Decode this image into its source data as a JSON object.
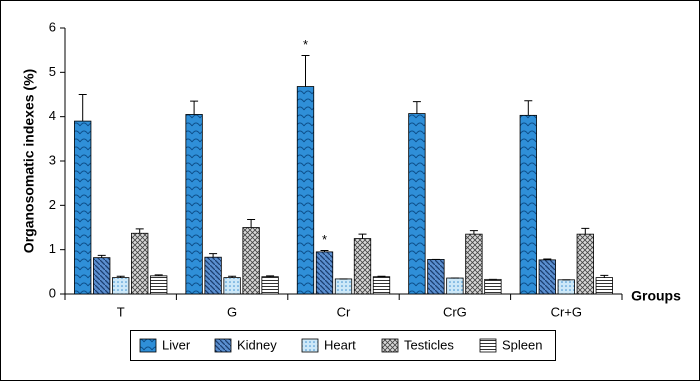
{
  "chart_data": {
    "type": "bar",
    "ylabel": "Organosomatic indexes (%)",
    "xlabel": "Groups",
    "categories": [
      "T",
      "G",
      "Cr",
      "CrG",
      "Cr+G"
    ],
    "series": [
      {
        "name": "Liver",
        "color": "#2f8fd8",
        "values": [
          3.9,
          4.05,
          4.68,
          4.07,
          4.03
        ],
        "errors": [
          0.6,
          0.3,
          0.7,
          0.27,
          0.33
        ]
      },
      {
        "name": "Kidney",
        "color": "#3a6fb0",
        "values": [
          0.82,
          0.83,
          0.95,
          0.78,
          0.77
        ],
        "errors": [
          0.05,
          0.08,
          0.03,
          0,
          0.02
        ]
      },
      {
        "name": "Heart",
        "color": "#a9d5f2",
        "values": [
          0.37,
          0.37,
          0.34,
          0.36,
          0.32
        ],
        "errors": [
          0.03,
          0.03,
          0,
          0,
          0
        ]
      },
      {
        "name": "Testicles",
        "color": "#b0b0b0",
        "values": [
          1.37,
          1.5,
          1.25,
          1.35,
          1.35
        ],
        "errors": [
          0.1,
          0.18,
          0.1,
          0.08,
          0.13
        ]
      },
      {
        "name": "Spleen",
        "color": "#ffffff",
        "values": [
          0.41,
          0.39,
          0.39,
          0.33,
          0.37
        ],
        "errors": [
          0.02,
          0.02,
          0.01,
          0,
          0.05
        ]
      }
    ],
    "annotations": [
      {
        "text": "*",
        "series": "Liver",
        "category": "Cr"
      },
      {
        "text": "*",
        "series": "Kidney",
        "category": "Cr"
      }
    ],
    "ylim": [
      0,
      6
    ],
    "yticks": [
      0,
      1,
      2,
      3,
      4,
      5,
      6
    ],
    "grid": false,
    "legend": "bottom"
  }
}
